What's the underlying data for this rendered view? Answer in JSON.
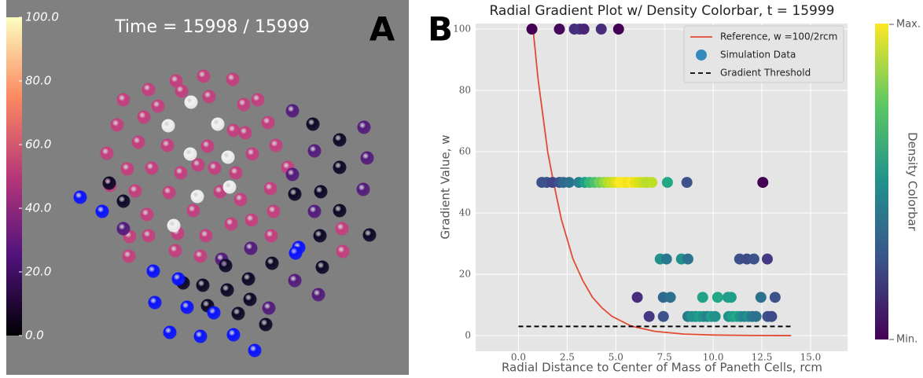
{
  "chart_data": [
    {
      "type": "render",
      "panel_label": "A",
      "title": "Time = 15998 / 15999",
      "colormap": "magma",
      "clim": [
        0,
        100
      ],
      "cticks": [
        {
          "value": 0,
          "label": "0.0"
        },
        {
          "value": 20,
          "label": "20.0"
        },
        {
          "value": 40,
          "label": "40.0"
        },
        {
          "value": 60,
          "label": "60.0"
        },
        {
          "value": 80,
          "label": "80.0"
        },
        {
          "value": 100,
          "label": "100.0"
        }
      ]
    },
    {
      "type": "scatter",
      "panel_label": "B",
      "title": "Radial Gradient Plot w/ Density Colorbar, t = 15999",
      "xlabel": "Radial Distance to Center of Mass of Paneth Cells, rcm",
      "ylabel": "Gradient Value, w",
      "xlim": [
        -2.2,
        16.9
      ],
      "ylim": [
        -5.1,
        101.8
      ],
      "xticks": [
        {
          "value": 0,
          "label": "0.0"
        },
        {
          "value": 2.5,
          "label": "2.5"
        },
        {
          "value": 5,
          "label": "5.0"
        },
        {
          "value": 7.5,
          "label": "7.5"
        },
        {
          "value": 10,
          "label": "10.0"
        },
        {
          "value": 12.5,
          "label": "12.5"
        },
        {
          "value": 15,
          "label": "15.0"
        }
      ],
      "yticks": [
        0,
        20,
        40,
        60,
        80,
        100
      ],
      "grid": true,
      "legend": "upper right",
      "colorbar": {
        "label": "Density Colorbar",
        "colormap": "viridis",
        "ticklabels": [
          "Max.",
          "Min."
        ]
      },
      "series": [
        {
          "name": "Reference, w =100/2rcm",
          "kind": "line",
          "color": "#e24a33",
          "x": [
            0.75,
            1,
            1.5,
            1.8,
            2.2,
            2.8,
            3.3,
            3.8,
            4.3,
            4.8,
            5.8,
            7,
            8.5,
            10,
            12,
            14
          ],
          "values": [
            100,
            84,
            60,
            50,
            38,
            25,
            18,
            12.5,
            9,
            6.3,
            3.1,
            1.4,
            0.5,
            0.2,
            0.05,
            0.01
          ]
        },
        {
          "name": "Simulation Data",
          "kind": "points",
          "color": "#348abd",
          "x": [
            0.69,
            2.1,
            2.87,
            3.15,
            3.36,
            4.25,
            5.14,
            1.2,
            1.45,
            1.75,
            2.1,
            2.3,
            2.6,
            3.1,
            3.4,
            3.65,
            3.9,
            4.15,
            4.4,
            4.6,
            4.8,
            5.0,
            5.2,
            5.4,
            5.6,
            5.8,
            6.0,
            6.2,
            6.4,
            6.6,
            6.85,
            7.65,
            8.65,
            12.55,
            7.28,
            7.6,
            8.37,
            8.7,
            11.36,
            11.73,
            12.09,
            12.78,
            6.1,
            7.44,
            7.8,
            9.46,
            10.23,
            10.76,
            10.92,
            12.45,
            13.18,
            6.71,
            7.44,
            8.7,
            8.9,
            9.1,
            9.3,
            9.5,
            9.7,
            9.9,
            10.1,
            10.8,
            11.0,
            11.2,
            11.4,
            11.6,
            11.8,
            12.0,
            12.2,
            12.8,
            13.0
          ],
          "values": [
            100,
            100,
            100,
            100,
            100,
            100,
            100,
            50,
            50,
            50,
            50,
            50,
            50,
            50,
            50,
            50,
            50,
            50,
            50,
            50,
            50,
            50,
            50,
            50,
            50,
            50,
            50,
            50,
            50,
            50,
            50,
            50,
            50,
            50,
            25,
            25,
            25,
            25,
            25,
            25,
            25,
            25,
            12.5,
            12.5,
            12.5,
            12.5,
            12.5,
            12.5,
            12.5,
            12.5,
            12.5,
            6.25,
            6.25,
            6.25,
            6.25,
            6.25,
            6.25,
            6.25,
            6.25,
            6.25,
            6.25,
            6.25,
            6.25,
            6.25,
            6.25,
            6.25,
            6.25,
            6.25,
            6.25,
            6.25,
            6.25
          ],
          "colors": [
            "#440154",
            "#46085c",
            "#472d7b",
            "#46327e",
            "#482576",
            "#472d7b",
            "#440154",
            "#3b528b",
            "#3b528b",
            "#414487",
            "#3b528b",
            "#31688e",
            "#2c728e",
            "#26828e",
            "#1f9e89",
            "#35b779",
            "#4ac16d",
            "#6ece58",
            "#8fd744",
            "#b5de2b",
            "#c8e020",
            "#dde318",
            "#fde725",
            "#fde725",
            "#f1e51d",
            "#fde725",
            "#e5e419",
            "#d8e219",
            "#c8e020",
            "#b5de2b",
            "#bddf26",
            "#22a884",
            "#3b528b",
            "#440154",
            "#21918c",
            "#2a788e",
            "#21918c",
            "#2c728e",
            "#3b528b",
            "#3e4989",
            "#3b528b",
            "#443983",
            "#472d7b",
            "#31688e",
            "#2c728e",
            "#20a386",
            "#22a884",
            "#1f9e89",
            "#1f9e89",
            "#2c728e",
            "#3b528b",
            "#443983",
            "#3b528b",
            "#2a788e",
            "#21918c",
            "#21918c",
            "#1f9e89",
            "#21918c",
            "#26828e",
            "#1f9e89",
            "#21918c",
            "#21918c",
            "#1f9e89",
            "#22a884",
            "#21918c",
            "#26828e",
            "#21918c",
            "#2a788e",
            "#2c728e",
            "#3b528b",
            "#3e4989"
          ]
        },
        {
          "name": "Gradient Threshold",
          "kind": "dashed",
          "color": "#000000",
          "x": [
            0,
            14
          ],
          "values": [
            3,
            3
          ]
        }
      ]
    }
  ]
}
